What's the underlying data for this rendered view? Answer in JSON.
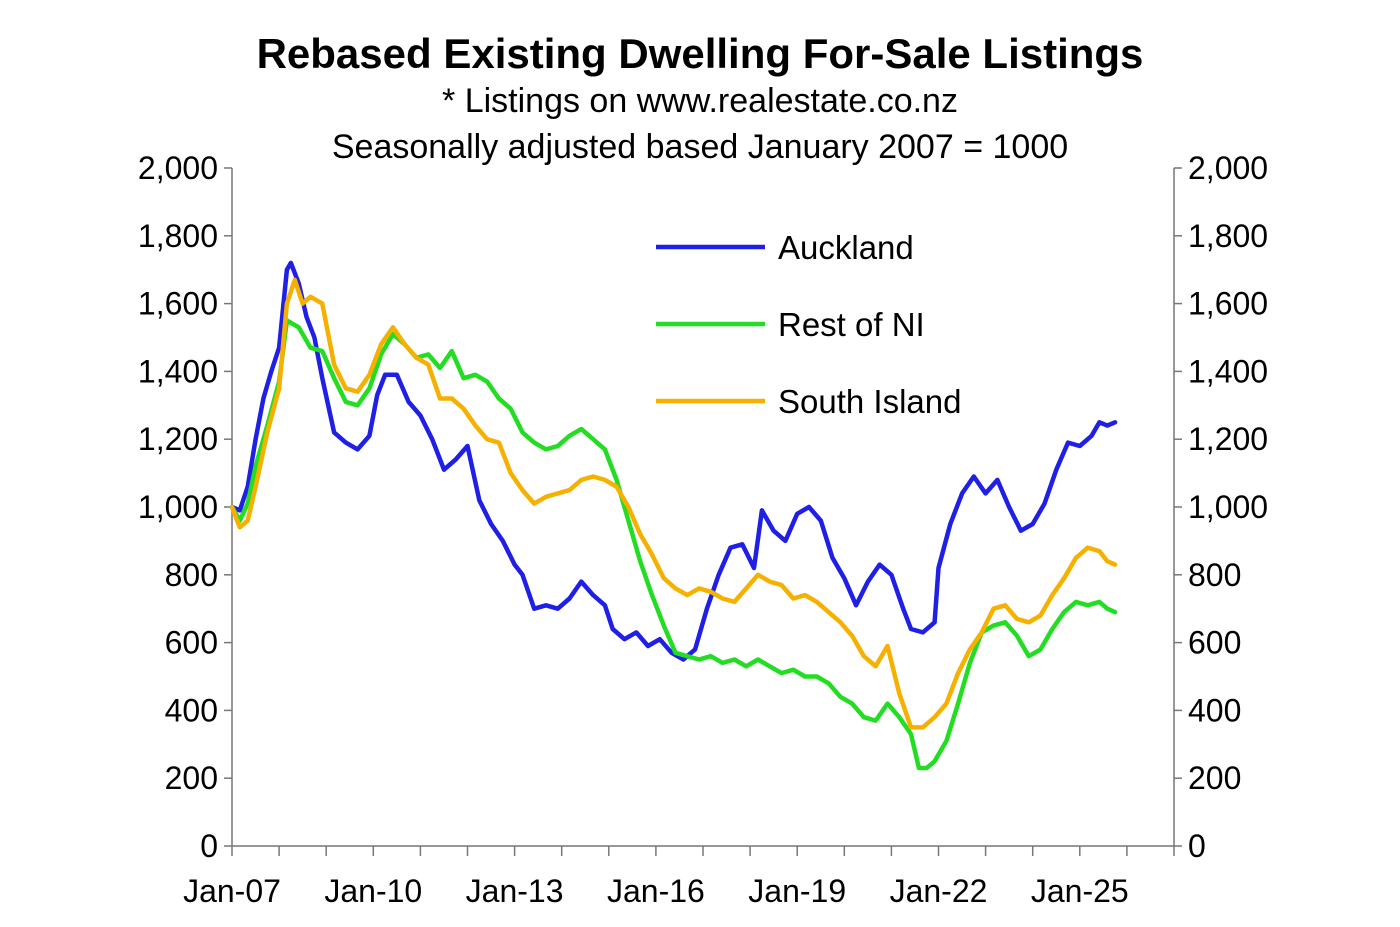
{
  "chart_data": {
    "type": "line",
    "title": "Rebased Existing Dwelling For-Sale Listings",
    "subtitle_1": "* Listings on www.realestate.co.nz",
    "subtitle_2": "Seasonally adjusted based January 2007 = 1000",
    "x_start": "2007-01",
    "x_end": "2026-12",
    "x_ticks": [
      "Jan-07",
      "Jan-10",
      "Jan-13",
      "Jan-16",
      "Jan-19",
      "Jan-22",
      "Jan-25"
    ],
    "ylim": [
      0,
      2000
    ],
    "y_ticks": [
      "0",
      "200",
      "400",
      "600",
      "800",
      "1,000",
      "1,200",
      "1,400",
      "1,600",
      "1,800",
      "2,000"
    ],
    "legend_position": "top-right",
    "series": [
      {
        "name": "Auckland",
        "color": "#1f1fe6",
        "points": [
          [
            "2007-01",
            1000
          ],
          [
            "2007-03",
            990
          ],
          [
            "2007-05",
            1060
          ],
          [
            "2007-07",
            1200
          ],
          [
            "2007-09",
            1320
          ],
          [
            "2007-11",
            1400
          ],
          [
            "2008-01",
            1470
          ],
          [
            "2008-03",
            1700
          ],
          [
            "2008-04",
            1720
          ],
          [
            "2008-06",
            1660
          ],
          [
            "2008-08",
            1560
          ],
          [
            "2008-10",
            1500
          ],
          [
            "2008-12",
            1380
          ],
          [
            "2009-03",
            1220
          ],
          [
            "2009-06",
            1190
          ],
          [
            "2009-09",
            1170
          ],
          [
            "2009-12",
            1210
          ],
          [
            "2010-02",
            1330
          ],
          [
            "2010-04",
            1390
          ],
          [
            "2010-07",
            1390
          ],
          [
            "2010-10",
            1310
          ],
          [
            "2011-01",
            1270
          ],
          [
            "2011-04",
            1200
          ],
          [
            "2011-07",
            1110
          ],
          [
            "2011-10",
            1140
          ],
          [
            "2012-01",
            1180
          ],
          [
            "2012-04",
            1020
          ],
          [
            "2012-07",
            950
          ],
          [
            "2012-10",
            900
          ],
          [
            "2013-01",
            830
          ],
          [
            "2013-03",
            800
          ],
          [
            "2013-06",
            700
          ],
          [
            "2013-09",
            710
          ],
          [
            "2013-12",
            700
          ],
          [
            "2014-03",
            730
          ],
          [
            "2014-06",
            780
          ],
          [
            "2014-09",
            740
          ],
          [
            "2014-12",
            710
          ],
          [
            "2015-02",
            640
          ],
          [
            "2015-05",
            610
          ],
          [
            "2015-08",
            630
          ],
          [
            "2015-11",
            590
          ],
          [
            "2016-02",
            610
          ],
          [
            "2016-05",
            570
          ],
          [
            "2016-08",
            550
          ],
          [
            "2016-11",
            580
          ],
          [
            "2017-02",
            700
          ],
          [
            "2017-05",
            800
          ],
          [
            "2017-08",
            880
          ],
          [
            "2017-11",
            890
          ],
          [
            "2018-02",
            820
          ],
          [
            "2018-04",
            990
          ],
          [
            "2018-07",
            930
          ],
          [
            "2018-10",
            900
          ],
          [
            "2019-01",
            980
          ],
          [
            "2019-04",
            1000
          ],
          [
            "2019-07",
            960
          ],
          [
            "2019-10",
            850
          ],
          [
            "2020-01",
            790
          ],
          [
            "2020-04",
            710
          ],
          [
            "2020-07",
            780
          ],
          [
            "2020-10",
            830
          ],
          [
            "2021-01",
            800
          ],
          [
            "2021-04",
            700
          ],
          [
            "2021-06",
            640
          ],
          [
            "2021-09",
            630
          ],
          [
            "2021-12",
            660
          ],
          [
            "2022-01",
            820
          ],
          [
            "2022-04",
            950
          ],
          [
            "2022-07",
            1040
          ],
          [
            "2022-10",
            1090
          ],
          [
            "2023-01",
            1040
          ],
          [
            "2023-04",
            1080
          ],
          [
            "2023-07",
            1000
          ],
          [
            "2023-10",
            930
          ],
          [
            "2024-01",
            950
          ],
          [
            "2024-04",
            1010
          ],
          [
            "2024-07",
            1110
          ],
          [
            "2024-10",
            1190
          ],
          [
            "2025-01",
            1180
          ],
          [
            "2025-04",
            1210
          ],
          [
            "2025-06",
            1250
          ],
          [
            "2025-08",
            1240
          ],
          [
            "2025-10",
            1250
          ]
        ]
      },
      {
        "name": "Rest of NI",
        "color": "#22dd22",
        "points": [
          [
            "2007-01",
            1000
          ],
          [
            "2007-03",
            960
          ],
          [
            "2007-05",
            1010
          ],
          [
            "2007-07",
            1120
          ],
          [
            "2007-10",
            1240
          ],
          [
            "2008-01",
            1370
          ],
          [
            "2008-03",
            1550
          ],
          [
            "2008-06",
            1530
          ],
          [
            "2008-09",
            1470
          ],
          [
            "2008-12",
            1460
          ],
          [
            "2009-03",
            1380
          ],
          [
            "2009-06",
            1310
          ],
          [
            "2009-09",
            1300
          ],
          [
            "2009-12",
            1350
          ],
          [
            "2010-03",
            1450
          ],
          [
            "2010-06",
            1510
          ],
          [
            "2010-09",
            1480
          ],
          [
            "2010-12",
            1440
          ],
          [
            "2011-03",
            1450
          ],
          [
            "2011-06",
            1410
          ],
          [
            "2011-09",
            1460
          ],
          [
            "2011-12",
            1380
          ],
          [
            "2012-03",
            1390
          ],
          [
            "2012-06",
            1370
          ],
          [
            "2012-09",
            1320
          ],
          [
            "2012-12",
            1290
          ],
          [
            "2013-03",
            1220
          ],
          [
            "2013-06",
            1190
          ],
          [
            "2013-09",
            1170
          ],
          [
            "2013-12",
            1180
          ],
          [
            "2014-03",
            1210
          ],
          [
            "2014-06",
            1230
          ],
          [
            "2014-09",
            1200
          ],
          [
            "2014-12",
            1170
          ],
          [
            "2015-03",
            1080
          ],
          [
            "2015-06",
            960
          ],
          [
            "2015-09",
            840
          ],
          [
            "2015-12",
            740
          ],
          [
            "2016-03",
            650
          ],
          [
            "2016-06",
            570
          ],
          [
            "2016-09",
            560
          ],
          [
            "2016-12",
            550
          ],
          [
            "2017-03",
            560
          ],
          [
            "2017-06",
            540
          ],
          [
            "2017-09",
            550
          ],
          [
            "2017-12",
            530
          ],
          [
            "2018-03",
            550
          ],
          [
            "2018-06",
            530
          ],
          [
            "2018-09",
            510
          ],
          [
            "2018-12",
            520
          ],
          [
            "2019-03",
            500
          ],
          [
            "2019-06",
            500
          ],
          [
            "2019-09",
            480
          ],
          [
            "2019-12",
            440
          ],
          [
            "2020-03",
            420
          ],
          [
            "2020-06",
            380
          ],
          [
            "2020-09",
            370
          ],
          [
            "2020-12",
            420
          ],
          [
            "2021-03",
            380
          ],
          [
            "2021-06",
            330
          ],
          [
            "2021-08",
            230
          ],
          [
            "2021-10",
            230
          ],
          [
            "2021-12",
            250
          ],
          [
            "2022-03",
            310
          ],
          [
            "2022-06",
            420
          ],
          [
            "2022-09",
            540
          ],
          [
            "2022-12",
            630
          ],
          [
            "2023-03",
            650
          ],
          [
            "2023-06",
            660
          ],
          [
            "2023-09",
            620
          ],
          [
            "2023-12",
            560
          ],
          [
            "2024-03",
            580
          ],
          [
            "2024-06",
            640
          ],
          [
            "2024-09",
            690
          ],
          [
            "2024-12",
            720
          ],
          [
            "2025-03",
            710
          ],
          [
            "2025-06",
            720
          ],
          [
            "2025-08",
            700
          ],
          [
            "2025-10",
            690
          ]
        ]
      },
      {
        "name": "South Island",
        "color": "#f5b000",
        "points": [
          [
            "2007-01",
            1000
          ],
          [
            "2007-03",
            940
          ],
          [
            "2007-05",
            960
          ],
          [
            "2007-07",
            1060
          ],
          [
            "2007-10",
            1220
          ],
          [
            "2008-01",
            1350
          ],
          [
            "2008-03",
            1600
          ],
          [
            "2008-05",
            1670
          ],
          [
            "2008-07",
            1600
          ],
          [
            "2008-09",
            1620
          ],
          [
            "2008-12",
            1600
          ],
          [
            "2009-03",
            1420
          ],
          [
            "2009-06",
            1350
          ],
          [
            "2009-09",
            1340
          ],
          [
            "2009-12",
            1390
          ],
          [
            "2010-03",
            1480
          ],
          [
            "2010-06",
            1530
          ],
          [
            "2010-09",
            1480
          ],
          [
            "2010-12",
            1440
          ],
          [
            "2011-03",
            1420
          ],
          [
            "2011-06",
            1320
          ],
          [
            "2011-09",
            1320
          ],
          [
            "2011-12",
            1290
          ],
          [
            "2012-03",
            1240
          ],
          [
            "2012-06",
            1200
          ],
          [
            "2012-09",
            1190
          ],
          [
            "2012-12",
            1100
          ],
          [
            "2013-03",
            1050
          ],
          [
            "2013-06",
            1010
          ],
          [
            "2013-09",
            1030
          ],
          [
            "2013-12",
            1040
          ],
          [
            "2014-03",
            1050
          ],
          [
            "2014-06",
            1080
          ],
          [
            "2014-09",
            1090
          ],
          [
            "2014-12",
            1080
          ],
          [
            "2015-03",
            1060
          ],
          [
            "2015-06",
            1000
          ],
          [
            "2015-09",
            920
          ],
          [
            "2015-12",
            860
          ],
          [
            "2016-03",
            790
          ],
          [
            "2016-06",
            760
          ],
          [
            "2016-09",
            740
          ],
          [
            "2016-12",
            760
          ],
          [
            "2017-03",
            750
          ],
          [
            "2017-06",
            730
          ],
          [
            "2017-09",
            720
          ],
          [
            "2017-12",
            760
          ],
          [
            "2018-03",
            800
          ],
          [
            "2018-06",
            780
          ],
          [
            "2018-09",
            770
          ],
          [
            "2018-12",
            730
          ],
          [
            "2019-03",
            740
          ],
          [
            "2019-06",
            720
          ],
          [
            "2019-09",
            690
          ],
          [
            "2019-12",
            660
          ],
          [
            "2020-03",
            620
          ],
          [
            "2020-06",
            560
          ],
          [
            "2020-09",
            530
          ],
          [
            "2020-12",
            590
          ],
          [
            "2021-03",
            450
          ],
          [
            "2021-06",
            350
          ],
          [
            "2021-09",
            350
          ],
          [
            "2021-12",
            380
          ],
          [
            "2022-03",
            420
          ],
          [
            "2022-06",
            510
          ],
          [
            "2022-09",
            580
          ],
          [
            "2022-12",
            630
          ],
          [
            "2023-03",
            700
          ],
          [
            "2023-06",
            710
          ],
          [
            "2023-09",
            670
          ],
          [
            "2023-12",
            660
          ],
          [
            "2024-03",
            680
          ],
          [
            "2024-06",
            740
          ],
          [
            "2024-09",
            790
          ],
          [
            "2024-12",
            850
          ],
          [
            "2025-03",
            880
          ],
          [
            "2025-06",
            870
          ],
          [
            "2025-08",
            840
          ],
          [
            "2025-10",
            830
          ]
        ]
      }
    ]
  }
}
